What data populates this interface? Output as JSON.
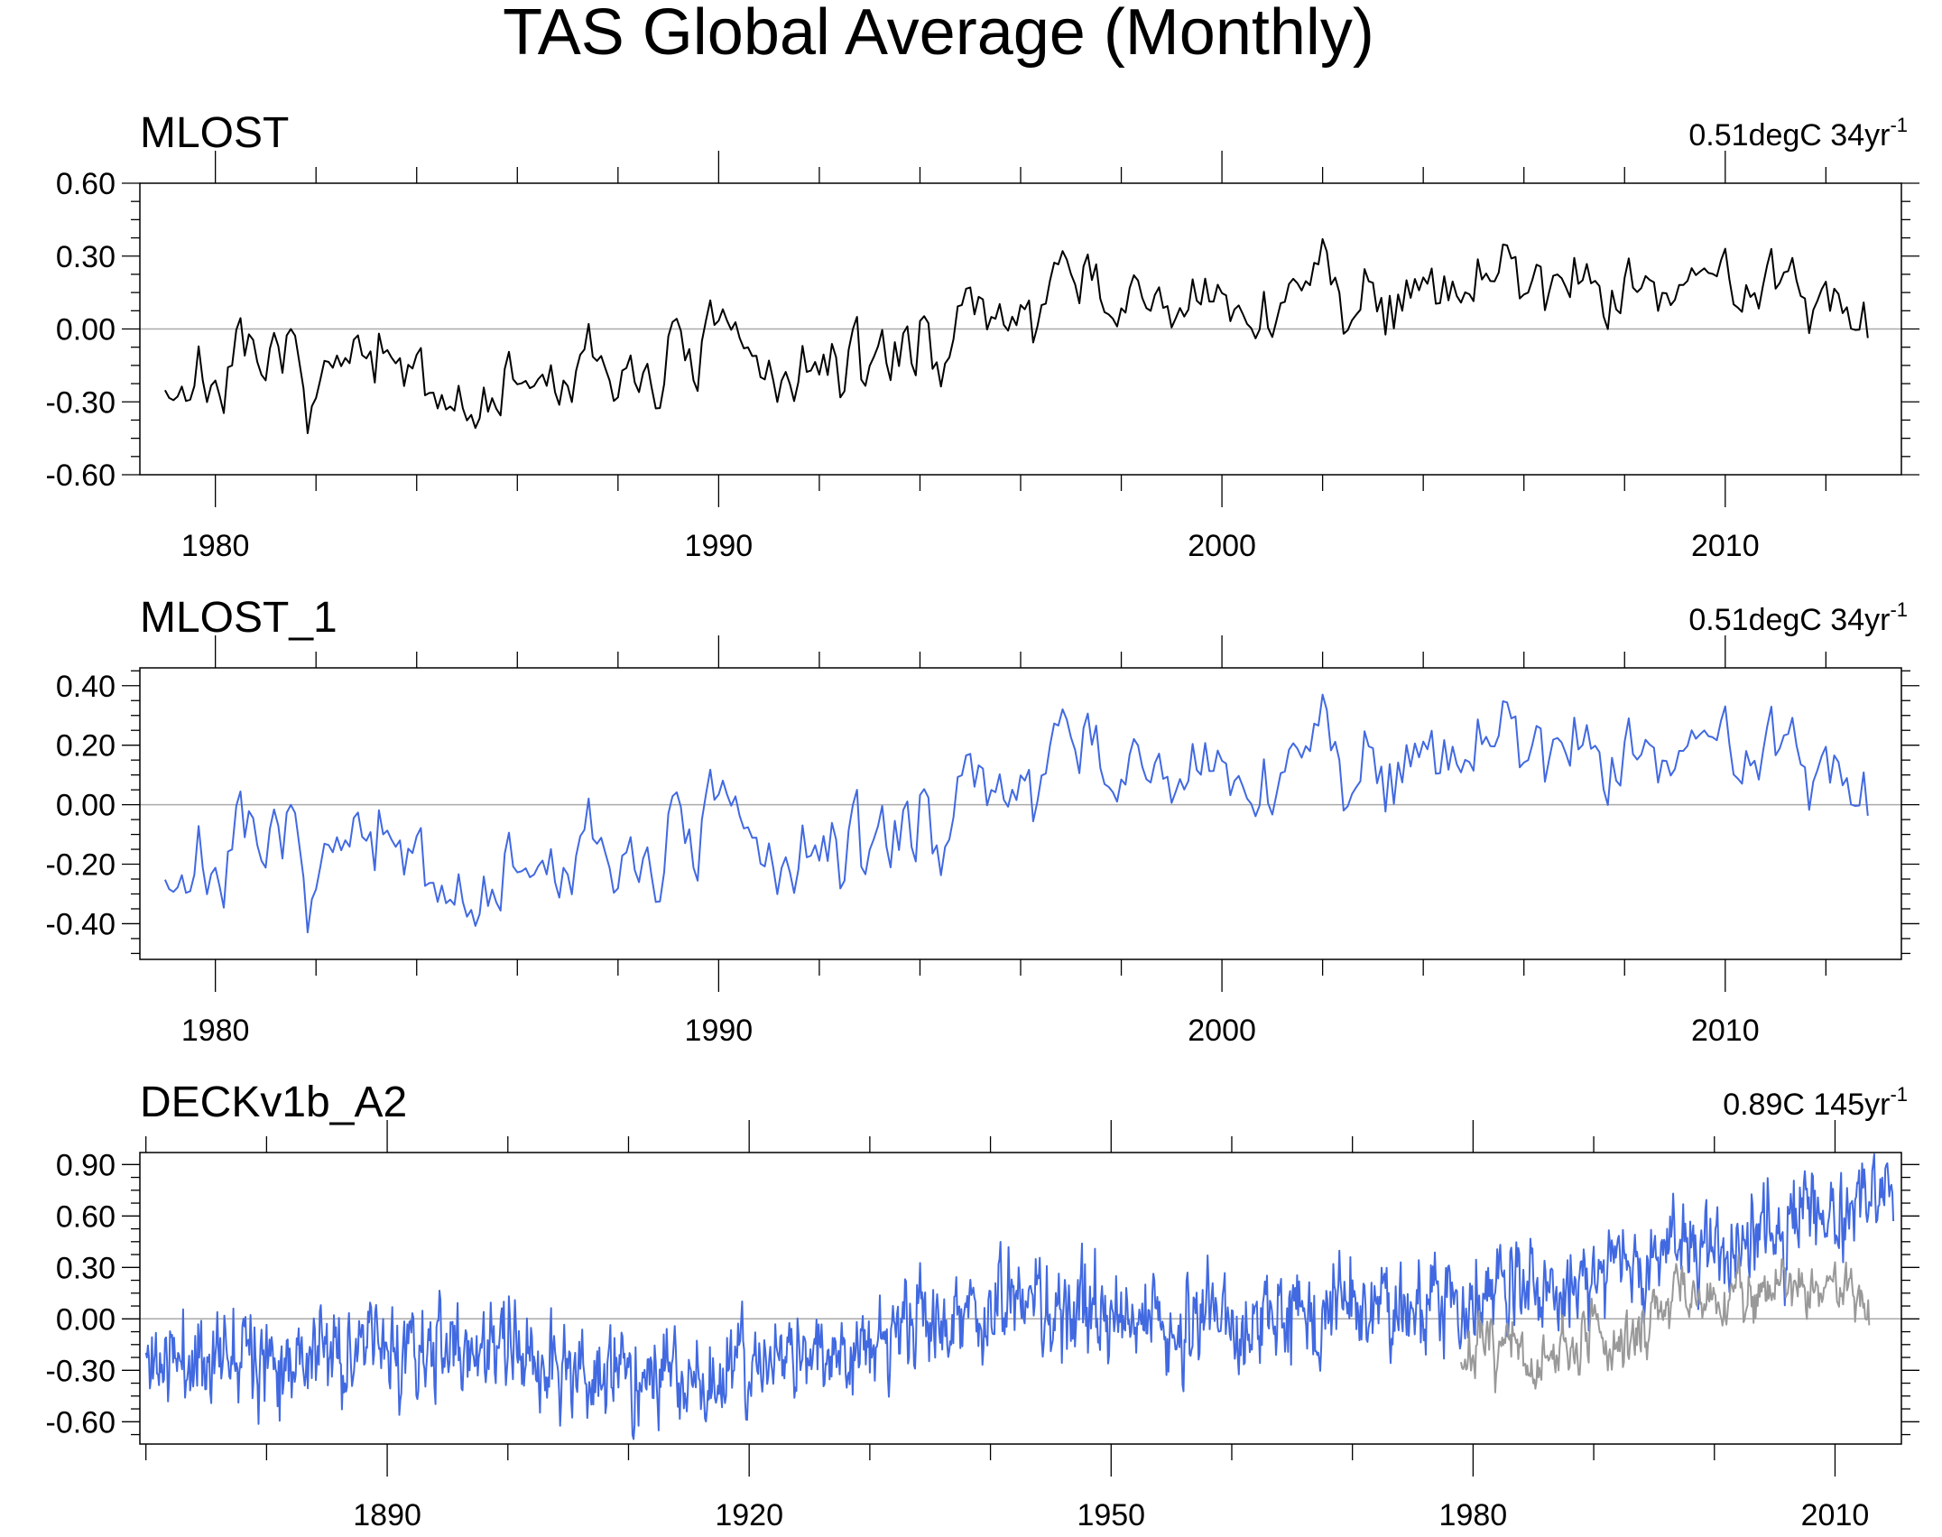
{
  "figure": {
    "title": "TAS Global Average (Monthly)"
  },
  "chart_data": [
    {
      "type": "line",
      "name": "MLOST",
      "title": "MLOST",
      "trend_label": "0.51degC 34yr",
      "trend_exponent": "-1",
      "xlim": [
        1978.5,
        2013.5
      ],
      "ylim": [
        -0.6,
        0.6
      ],
      "y_ticks": [
        -0.6,
        -0.3,
        0.0,
        0.3,
        0.6
      ],
      "y_tick_labels": [
        "-0.60",
        "-0.30",
        "0.00",
        "0.30",
        "0.60"
      ],
      "y_minor_step": 0.075,
      "x_ticks": [
        1980,
        1990,
        2000,
        2010
      ],
      "x_tick_labels": [
        "1980",
        "1990",
        "2000",
        "2010"
      ],
      "x_minor_step": 2,
      "reference_line": 0.0,
      "series": [
        {
          "name": "MLOST",
          "color": "#000000",
          "start_year": 1979,
          "end_year": 2012.9,
          "seed": 7,
          "mean": [
            [
              1979,
              -0.22
            ],
            [
              1983,
              -0.18
            ],
            [
              1985,
              -0.3
            ],
            [
              1990,
              -0.1
            ],
            [
              1992,
              -0.2
            ],
            [
              1995,
              0.02
            ],
            [
              1997,
              0.15
            ],
            [
              2000,
              0.05
            ],
            [
              2002,
              0.18
            ],
            [
              2007,
              0.22
            ],
            [
              2012.9,
              0.15
            ]
          ],
          "noise": 0.075,
          "ar": 0.55,
          "clip": [
            -0.5,
            0.44
          ]
        }
      ]
    },
    {
      "type": "line",
      "name": "MLOST_1",
      "title": "MLOST_1",
      "trend_label": "0.51degC 34yr",
      "trend_exponent": "-1",
      "xlim": [
        1978.5,
        2013.5
      ],
      "ylim": [
        -0.52,
        0.46
      ],
      "y_ticks": [
        -0.4,
        -0.2,
        0.0,
        0.2,
        0.4
      ],
      "y_tick_labels": [
        "-0.40",
        "-0.20",
        "0.00",
        "0.20",
        "0.40"
      ],
      "y_minor_step": 0.05,
      "x_ticks": [
        1980,
        1990,
        2000,
        2010
      ],
      "x_tick_labels": [
        "1980",
        "1990",
        "2000",
        "2010"
      ],
      "x_minor_step": 2,
      "reference_line": 0.0,
      "series": [
        {
          "name": "MLOST_1",
          "color": "#4169e1",
          "start_year": 1979,
          "end_year": 2012.9,
          "seed": 7,
          "mean": [
            [
              1979,
              -0.22
            ],
            [
              1983,
              -0.18
            ],
            [
              1985,
              -0.3
            ],
            [
              1990,
              -0.1
            ],
            [
              1992,
              -0.2
            ],
            [
              1995,
              0.02
            ],
            [
              1997,
              0.15
            ],
            [
              2000,
              0.05
            ],
            [
              2002,
              0.18
            ],
            [
              2007,
              0.22
            ],
            [
              2012.9,
              0.15
            ]
          ],
          "noise": 0.075,
          "ar": 0.55,
          "clip": [
            -0.5,
            0.44
          ]
        }
      ]
    },
    {
      "type": "line",
      "name": "DECKv1b_A2",
      "title": "DECKv1b_A2",
      "trend_label": "0.89C 145yr",
      "trend_exponent": "-1",
      "xlim": [
        1869.5,
        2015.5
      ],
      "ylim": [
        -0.73,
        0.97
      ],
      "y_ticks": [
        -0.6,
        -0.3,
        0.0,
        0.3,
        0.6,
        0.9
      ],
      "y_tick_labels": [
        "-0.60",
        "-0.30",
        "0.00",
        "0.30",
        "0.60",
        "0.90"
      ],
      "y_minor_step": 0.075,
      "x_ticks": [
        1890,
        1920,
        1950,
        1980,
        2010
      ],
      "x_tick_labels": [
        "1890",
        "1920",
        "1950",
        "1980",
        "2010"
      ],
      "x_minor_step": 10,
      "reference_line": 0.0,
      "series": [
        {
          "name": "DECKv1b_A2",
          "color": "#4169e1",
          "start_year": 1870,
          "end_year": 2014.9,
          "seed": 11,
          "mean": [
            [
              1870,
              -0.25
            ],
            [
              1876,
              -0.22
            ],
            [
              1878,
              -0.05
            ],
            [
              1880,
              -0.2
            ],
            [
              1900,
              -0.18
            ],
            [
              1905,
              -0.32
            ],
            [
              1917,
              -0.35
            ],
            [
              1925,
              -0.2
            ],
            [
              1940,
              0.05
            ],
            [
              1945,
              0.1
            ],
            [
              1950,
              -0.05
            ],
            [
              1965,
              0.0
            ],
            [
              1975,
              0.05
            ],
            [
              1980,
              0.12
            ],
            [
              1990,
              0.25
            ],
            [
              1998,
              0.45
            ],
            [
              2005,
              0.55
            ],
            [
              2010,
              0.62
            ],
            [
              2014.9,
              0.75
            ]
          ],
          "noise": 0.105,
          "ar": 0.45,
          "clip": [
            -0.72,
            0.96
          ]
        },
        {
          "name": "MLOST",
          "color": "#999999",
          "start_year": 1979,
          "end_year": 2012.9,
          "seed": 7,
          "mean": [
            [
              1979,
              -0.22
            ],
            [
              1983,
              -0.18
            ],
            [
              1985,
              -0.3
            ],
            [
              1990,
              -0.1
            ],
            [
              1992,
              -0.2
            ],
            [
              1995,
              0.02
            ],
            [
              1997,
              0.15
            ],
            [
              2000,
              0.05
            ],
            [
              2002,
              0.18
            ],
            [
              2007,
              0.22
            ],
            [
              2012.9,
              0.15
            ]
          ],
          "noise": 0.075,
          "ar": 0.55,
          "clip": [
            -0.5,
            0.44
          ]
        }
      ]
    }
  ]
}
